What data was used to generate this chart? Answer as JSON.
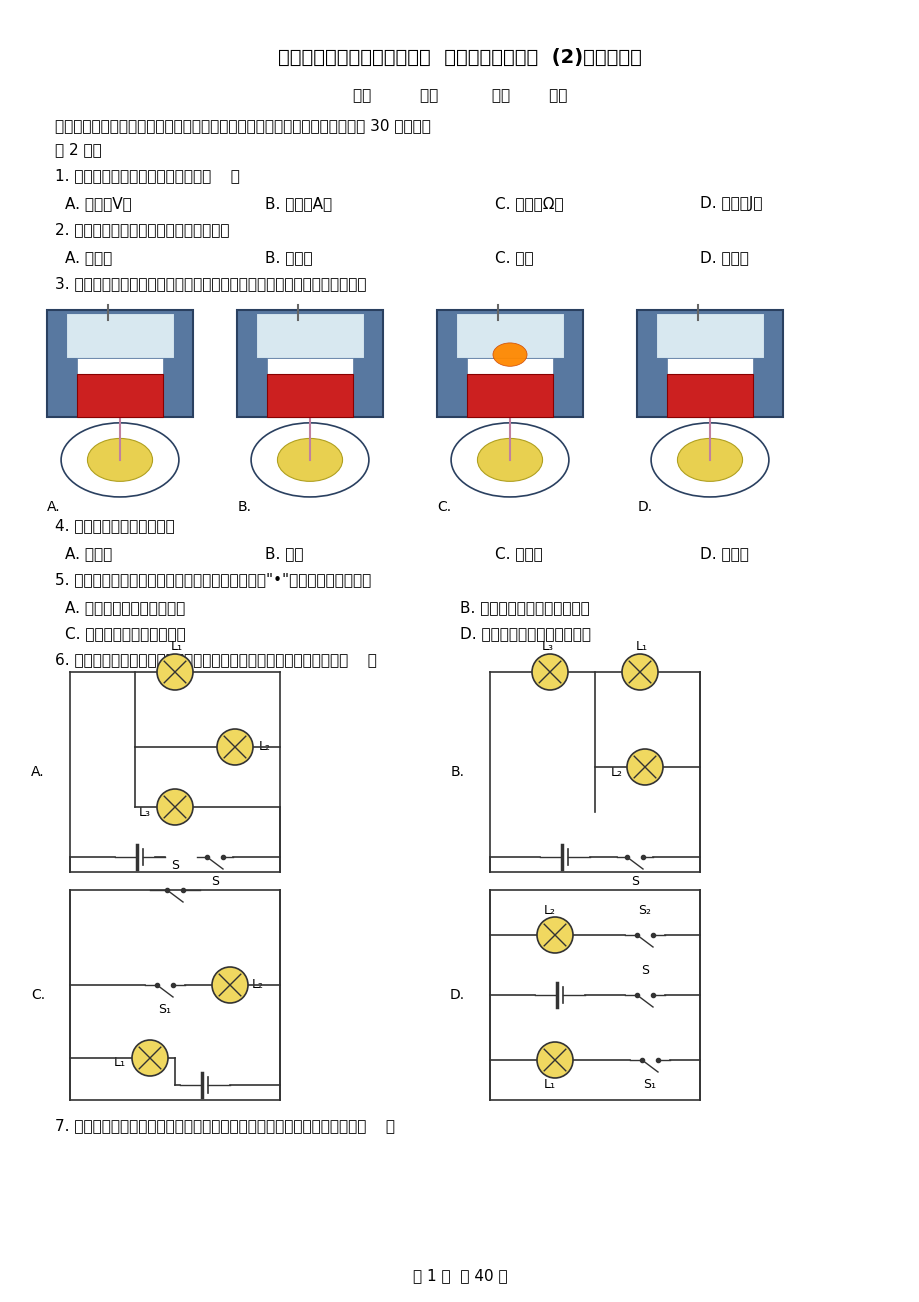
{
  "title": "人教版九年级物理上学期试题  期中考试物理试卷  (2)（含解析）",
  "subtitle": "班级          学号           姓名        成绩",
  "section1": "一、单项选择题（下列各小题均有四个选项，其中只有一个选项符合题意。共 30 分，每小",
  "section1b": "题 2 分）",
  "q1": "1. 在国际单位制中，电压的单位是（    ）",
  "q1a": "A. 伏特（V）",
  "q1b": "B. 安培（A）",
  "q1c": "C. 欧姆（Ω）",
  "q1d": "D. 焦耳（J）",
  "q2": "2. 下列物品中，通常情况下属于导体的是",
  "q2a": "A. 玻璃杯",
  "q2b": "B. 陶瓷碗",
  "q2c": "C. 铁锅",
  "q2d": "D. 塑料勺",
  "q3": "3. 如图所示是四冲程汽油机的一个工作循环示意图，其中属于做功冲程的是",
  "q4": "4. 以下机械不属于热机的是",
  "q4a": "A. 蒸汽机",
  "q4b": "B. 火箭",
  "q4c": "C. 洗衣机",
  "q4d": "D. 汽油机",
  "q5": "5. 下列四个生活实例中，通过热传递的方式使（加\"•\"）物体内能减少的是",
  "q5a": "A. 春天，人在院子里晒太阳",
  "q5b": "B. 夏天，给杯中的饮料加冰块",
  "q5c": "C. 秋天，给妈妈用热水泡脚",
  "q5d": "D. 冬天，操场上的同学搓搓手",
  "q6": "6. 如图所示的四个电路图中，各开关都闭合后，所有灯泡是并联的是（    ）",
  "q7": "7. 如图所示的滑动变阻器的四种接法中，滑片向左移动能使电阻减小的是（    ）",
  "footer": "第 1 页  共 40 页",
  "bg_color": "#ffffff",
  "text_color": "#000000"
}
